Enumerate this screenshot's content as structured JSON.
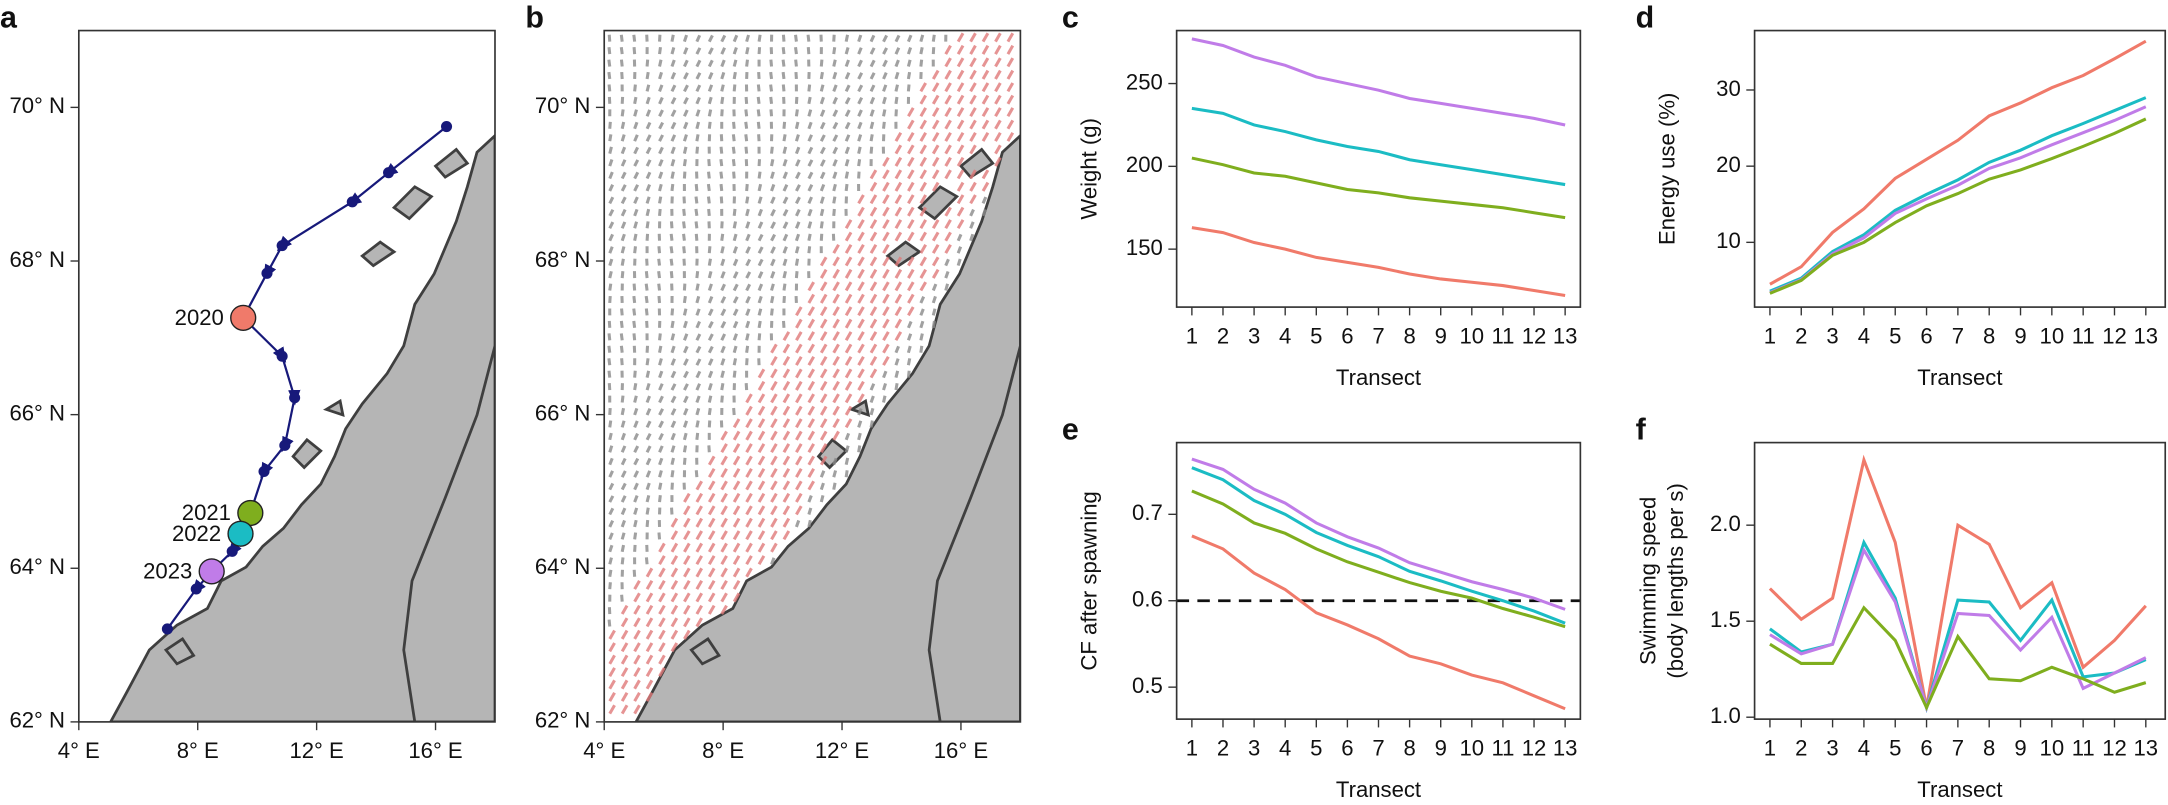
{
  "chart_data": [
    {
      "type": "map",
      "label": "a",
      "xlim": [
        4,
        18
      ],
      "ylim": [
        62,
        71
      ],
      "xticks": [
        {
          "value": 4,
          "label": "4° E"
        },
        {
          "value": 8,
          "label": "8° E"
        },
        {
          "value": 12,
          "label": "12° E"
        },
        {
          "value": 16,
          "label": "16° E"
        }
      ],
      "yticks": [
        {
          "value": 62,
          "label": "62° N"
        },
        {
          "value": 64,
          "label": "64° N"
        },
        {
          "value": 66,
          "label": "66° N"
        },
        {
          "value": 68,
          "label": "68° N"
        },
        {
          "value": 70,
          "label": "70° N"
        }
      ],
      "track": {
        "color": "#17197a",
        "lon": [
          16.37,
          14.42,
          13.2,
          10.84,
          10.33,
          9.53,
          10.84,
          11.26,
          10.93,
          10.23,
          9.77,
          9.44,
          9.16,
          8.47,
          7.95,
          6.98
        ],
        "lat": [
          69.75,
          69.15,
          68.77,
          68.2,
          67.84,
          67.26,
          66.76,
          66.22,
          65.6,
          65.26,
          64.72,
          64.45,
          64.22,
          63.96,
          63.73,
          63.21
        ]
      },
      "sites": [
        {
          "label": "2020",
          "lon": 9.53,
          "lat": 67.26,
          "color": "#f07a6a"
        },
        {
          "label": "2021",
          "lon": 9.77,
          "lat": 64.72,
          "color": "#7fae1e"
        },
        {
          "label": "2022",
          "lon": 9.44,
          "lat": 64.45,
          "color": "#1bbcc4"
        },
        {
          "label": "2023",
          "lon": 8.47,
          "lat": 63.96,
          "color": "#c07ce8"
        }
      ]
    },
    {
      "type": "map",
      "label": "b",
      "currents": true,
      "xlim": [
        4,
        18
      ],
      "ylim": [
        62,
        71
      ],
      "xticks": [
        {
          "value": 4,
          "label": "4° E"
        },
        {
          "value": 8,
          "label": "8° E"
        },
        {
          "value": 12,
          "label": "12° E"
        },
        {
          "value": 16,
          "label": "16° E"
        }
      ],
      "yticks": [
        {
          "value": 62,
          "label": "62° N"
        },
        {
          "value": 64,
          "label": "64° N"
        },
        {
          "value": 66,
          "label": "66° N"
        },
        {
          "value": 68,
          "label": "68° N"
        },
        {
          "value": 70,
          "label": "70° N"
        }
      ]
    },
    {
      "type": "line",
      "label": "c",
      "xlabel": "Transect",
      "ylabel": [
        "Weight (g)"
      ],
      "x": [
        1,
        2,
        3,
        4,
        5,
        6,
        7,
        8,
        9,
        10,
        11,
        12,
        13
      ],
      "xlim": [
        0.51,
        13.49
      ],
      "xticks": [
        1,
        2,
        3,
        4,
        5,
        6,
        7,
        8,
        9,
        10,
        11,
        12,
        13
      ],
      "ylim": [
        115,
        282
      ],
      "yticks": [
        150,
        200,
        250
      ],
      "series": [
        {
          "color": "#c07ce8",
          "values": [
            277,
            273,
            266,
            261,
            254,
            250,
            246,
            241,
            238,
            235,
            232,
            229,
            225
          ]
        },
        {
          "color": "#1bbcc4",
          "values": [
            235,
            232,
            225,
            221,
            216,
            212,
            209,
            204,
            201,
            198,
            195,
            192,
            189
          ]
        },
        {
          "color": "#7fae1e",
          "values": [
            205,
            201,
            196,
            194,
            190,
            186,
            184,
            181,
            179,
            177,
            175,
            172,
            169
          ]
        },
        {
          "color": "#f07a6a",
          "values": [
            163,
            160,
            154,
            150,
            145,
            142,
            139,
            135,
            132,
            130,
            128,
            125,
            122
          ]
        }
      ]
    },
    {
      "type": "line",
      "label": "d",
      "xlabel": "Transect",
      "ylabel": [
        "Energy use (%)"
      ],
      "x": [
        1,
        2,
        3,
        4,
        5,
        6,
        7,
        8,
        9,
        10,
        11,
        12,
        13
      ],
      "xlim": [
        0.51,
        13.62
      ],
      "xticks": [
        1,
        2,
        3,
        4,
        5,
        6,
        7,
        8,
        9,
        10,
        11,
        12,
        13
      ],
      "ylim": [
        1.5,
        37.8
      ],
      "yticks": [
        10,
        20,
        30
      ],
      "series": [
        {
          "color": "#f07a6a",
          "values": [
            4.5,
            6.8,
            11.3,
            14.4,
            18.4,
            20.9,
            23.4,
            26.6,
            28.3,
            30.3,
            31.9,
            34.1,
            36.4
          ]
        },
        {
          "color": "#1bbcc4",
          "values": [
            3.6,
            5.3,
            8.8,
            11.0,
            14.2,
            16.3,
            18.2,
            20.5,
            22.1,
            24.0,
            25.6,
            27.3,
            29.0
          ]
        },
        {
          "color": "#c07ce8",
          "values": [
            3.4,
            5.1,
            8.5,
            10.6,
            13.8,
            15.7,
            17.5,
            19.7,
            21.1,
            22.8,
            24.4,
            26.0,
            27.8
          ]
        },
        {
          "color": "#7fae1e",
          "values": [
            3.3,
            5.0,
            8.3,
            10.0,
            12.6,
            14.8,
            16.4,
            18.3,
            19.5,
            21.0,
            22.6,
            24.3,
            26.2
          ]
        }
      ]
    },
    {
      "type": "line",
      "label": "e",
      "xlabel": "Transect",
      "ylabel": [
        "CF after spawning"
      ],
      "x": [
        1,
        2,
        3,
        4,
        5,
        6,
        7,
        8,
        9,
        10,
        11,
        12,
        13
      ],
      "xlim": [
        0.51,
        13.49
      ],
      "xticks": [
        1,
        2,
        3,
        4,
        5,
        6,
        7,
        8,
        9,
        10,
        11,
        12,
        13
      ],
      "ylim": [
        0.463,
        0.783
      ],
      "yticks": [
        0.5,
        0.6,
        0.7
      ],
      "hline": 0.6,
      "series": [
        {
          "color": "#c07ce8",
          "values": [
            0.764,
            0.752,
            0.729,
            0.713,
            0.69,
            0.674,
            0.661,
            0.644,
            0.633,
            0.622,
            0.613,
            0.603,
            0.59
          ]
        },
        {
          "color": "#1bbcc4",
          "values": [
            0.754,
            0.74,
            0.716,
            0.7,
            0.679,
            0.664,
            0.651,
            0.634,
            0.623,
            0.611,
            0.6,
            0.588,
            0.574
          ]
        },
        {
          "color": "#7fae1e",
          "values": [
            0.727,
            0.712,
            0.69,
            0.678,
            0.66,
            0.645,
            0.633,
            0.621,
            0.611,
            0.603,
            0.591,
            0.581,
            0.57
          ]
        },
        {
          "color": "#f07a6a",
          "values": [
            0.675,
            0.66,
            0.632,
            0.613,
            0.586,
            0.572,
            0.556,
            0.536,
            0.527,
            0.514,
            0.505,
            0.49,
            0.475
          ]
        }
      ]
    },
    {
      "type": "line",
      "label": "f",
      "xlabel": "Transect",
      "ylabel": [
        "Swimming speed",
        "(body lengths per s)"
      ],
      "x": [
        1,
        2,
        3,
        4,
        5,
        6,
        7,
        8,
        9,
        10,
        11,
        12,
        13
      ],
      "xlim": [
        0.51,
        13.62
      ],
      "xticks": [
        1,
        2,
        3,
        4,
        5,
        6,
        7,
        8,
        9,
        10,
        11,
        12,
        13
      ],
      "ylim": [
        0.99,
        2.43
      ],
      "yticks": [
        {
          "value": 1.0,
          "label": "1.0"
        },
        1.5,
        {
          "value": 2.0,
          "label": "2.0"
        }
      ],
      "series": [
        {
          "color": "#f07a6a",
          "values": [
            1.67,
            1.51,
            1.62,
            2.34,
            1.91,
            1.05,
            2.0,
            1.9,
            1.57,
            1.7,
            1.26,
            1.4,
            1.58
          ]
        },
        {
          "color": "#1bbcc4",
          "values": [
            1.46,
            1.34,
            1.38,
            1.91,
            1.62,
            1.05,
            1.61,
            1.6,
            1.4,
            1.61,
            1.21,
            1.23,
            1.3
          ]
        },
        {
          "color": "#c07ce8",
          "values": [
            1.43,
            1.33,
            1.38,
            1.87,
            1.6,
            1.05,
            1.54,
            1.53,
            1.35,
            1.52,
            1.15,
            1.23,
            1.31
          ]
        },
        {
          "color": "#7fae1e",
          "values": [
            1.38,
            1.28,
            1.28,
            1.57,
            1.4,
            1.05,
            1.42,
            1.2,
            1.19,
            1.26,
            1.2,
            1.13,
            1.18
          ]
        }
      ]
    }
  ]
}
